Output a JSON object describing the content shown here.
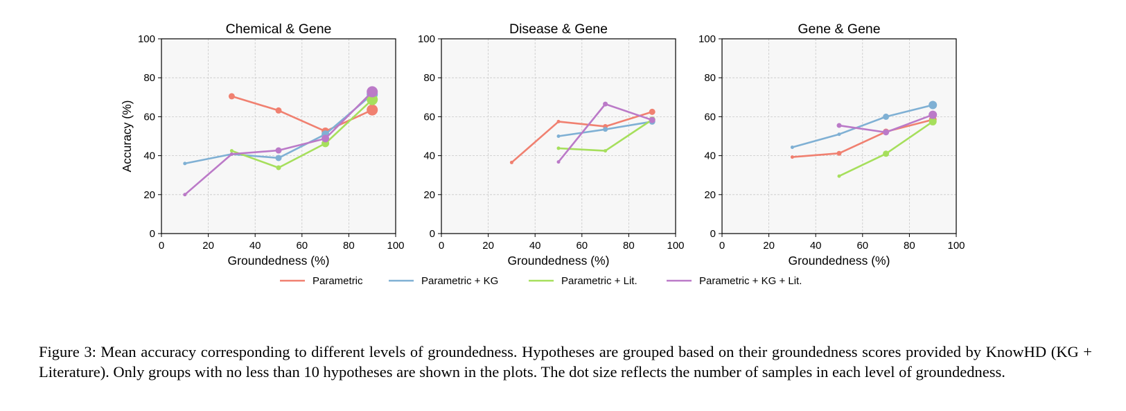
{
  "colors": {
    "Parametric": "#f08070",
    "Parametric + KG": "#7fb0d4",
    "Parametric + Lit.": "#a6df5c",
    "Parametric + KG + Lit.": "#bb7ac8",
    "panel_background": "#f7f7f7",
    "grid": "#c8c8c8"
  },
  "legend": {
    "placement": "bottom-center",
    "entries": [
      "Parametric",
      "Parametric + KG",
      "Parametric + Lit.",
      "Parametric + KG + Lit."
    ]
  },
  "chart_data": [
    {
      "type": "line",
      "title": "Chemical & Gene",
      "xlabel": "Groundedness (%)",
      "ylabel": "Accuracy (%)",
      "xlim": [
        0,
        100
      ],
      "ylim": [
        0,
        100
      ],
      "xticks": [
        0,
        20,
        40,
        60,
        80,
        100
      ],
      "yticks": [
        0,
        20,
        40,
        60,
        80,
        100
      ],
      "grid": true,
      "series": [
        {
          "name": "Parametric",
          "points": [
            {
              "x": 30,
              "y": 70.5,
              "s": 3
            },
            {
              "x": 50,
              "y": 63.2,
              "s": 3
            },
            {
              "x": 70,
              "y": 52.5,
              "s": 4
            },
            {
              "x": 90,
              "y": 63.5,
              "s": 6.5
            }
          ]
        },
        {
          "name": "Parametric + KG",
          "points": [
            {
              "x": 10,
              "y": 36,
              "s": 1
            },
            {
              "x": 30,
              "y": 40.8,
              "s": 1
            },
            {
              "x": 50,
              "y": 38.8,
              "s": 3
            },
            {
              "x": 70,
              "y": 51,
              "s": 4
            },
            {
              "x": 90,
              "y": 71.5,
              "s": 6.5
            }
          ]
        },
        {
          "name": "Parametric + Lit.",
          "points": [
            {
              "x": 30,
              "y": 42.5,
              "s": 1
            },
            {
              "x": 50,
              "y": 33.8,
              "s": 2
            },
            {
              "x": 70,
              "y": 46.3,
              "s": 4
            },
            {
              "x": 90,
              "y": 68.8,
              "s": 6.5
            }
          ]
        },
        {
          "name": "Parametric + KG + Lit.",
          "points": [
            {
              "x": 10,
              "y": 20,
              "s": 1
            },
            {
              "x": 30,
              "y": 40.8,
              "s": 1
            },
            {
              "x": 50,
              "y": 42.7,
              "s": 3
            },
            {
              "x": 70,
              "y": 48.8,
              "s": 4
            },
            {
              "x": 90,
              "y": 72.8,
              "s": 6.5
            }
          ]
        }
      ]
    },
    {
      "type": "line",
      "title": "Disease & Gene",
      "xlabel": "Groundedness (%)",
      "ylabel": "",
      "xlim": [
        0,
        100
      ],
      "ylim": [
        0,
        100
      ],
      "xticks": [
        0,
        20,
        40,
        60,
        80,
        100
      ],
      "yticks": [
        0,
        20,
        40,
        60,
        80,
        100
      ],
      "grid": true,
      "series": [
        {
          "name": "Parametric",
          "points": [
            {
              "x": 30,
              "y": 36.5,
              "s": 1
            },
            {
              "x": 50,
              "y": 57.5,
              "s": 1
            },
            {
              "x": 70,
              "y": 55,
              "s": 2
            },
            {
              "x": 90,
              "y": 62.5,
              "s": 3
            }
          ]
        },
        {
          "name": "Parametric + KG",
          "points": [
            {
              "x": 50,
              "y": 50,
              "s": 1
            },
            {
              "x": 70,
              "y": 53.5,
              "s": 2
            },
            {
              "x": 90,
              "y": 57.5,
              "s": 3
            }
          ]
        },
        {
          "name": "Parametric + Lit.",
          "points": [
            {
              "x": 50,
              "y": 43.8,
              "s": 1
            },
            {
              "x": 70,
              "y": 42.5,
              "s": 1
            },
            {
              "x": 90,
              "y": 58.5,
              "s": 3
            }
          ]
        },
        {
          "name": "Parametric + KG + Lit.",
          "points": [
            {
              "x": 50,
              "y": 36.8,
              "s": 1
            },
            {
              "x": 70,
              "y": 66.5,
              "s": 2
            },
            {
              "x": 90,
              "y": 58.3,
              "s": 3
            }
          ]
        }
      ]
    },
    {
      "type": "line",
      "title": "Gene & Gene",
      "xlabel": "Groundedness (%)",
      "ylabel": "",
      "xlim": [
        0,
        100
      ],
      "ylim": [
        0,
        100
      ],
      "xticks": [
        0,
        20,
        40,
        60,
        80,
        100
      ],
      "yticks": [
        0,
        20,
        40,
        60,
        80,
        100
      ],
      "grid": true,
      "series": [
        {
          "name": "Parametric",
          "points": [
            {
              "x": 30,
              "y": 39.3,
              "s": 1
            },
            {
              "x": 50,
              "y": 41.2,
              "s": 2
            },
            {
              "x": 70,
              "y": 52.3,
              "s": 3
            },
            {
              "x": 90,
              "y": 58.5,
              "s": 4
            }
          ]
        },
        {
          "name": "Parametric + KG",
          "points": [
            {
              "x": 30,
              "y": 44.3,
              "s": 1
            },
            {
              "x": 50,
              "y": 51,
              "s": 1
            },
            {
              "x": 70,
              "y": 60,
              "s": 3
            },
            {
              "x": 90,
              "y": 66,
              "s": 4.5
            }
          ]
        },
        {
          "name": "Parametric + Lit.",
          "points": [
            {
              "x": 50,
              "y": 29.5,
              "s": 1
            },
            {
              "x": 70,
              "y": 41,
              "s": 3
            },
            {
              "x": 90,
              "y": 57.5,
              "s": 4
            }
          ]
        },
        {
          "name": "Parametric + KG + Lit.",
          "points": [
            {
              "x": 50,
              "y": 55.5,
              "s": 2
            },
            {
              "x": 70,
              "y": 52,
              "s": 3
            },
            {
              "x": 90,
              "y": 61,
              "s": 4.5
            }
          ]
        }
      ]
    }
  ],
  "caption": "Figure 3: Mean accuracy corresponding to different levels of groundedness. Hypotheses are grouped based on their groundedness scores provided by KnowHD (KG + Literature). Only groups with no less than 10 hypotheses are shown in the plots. The dot size reflects the number of samples in each level of groundedness."
}
